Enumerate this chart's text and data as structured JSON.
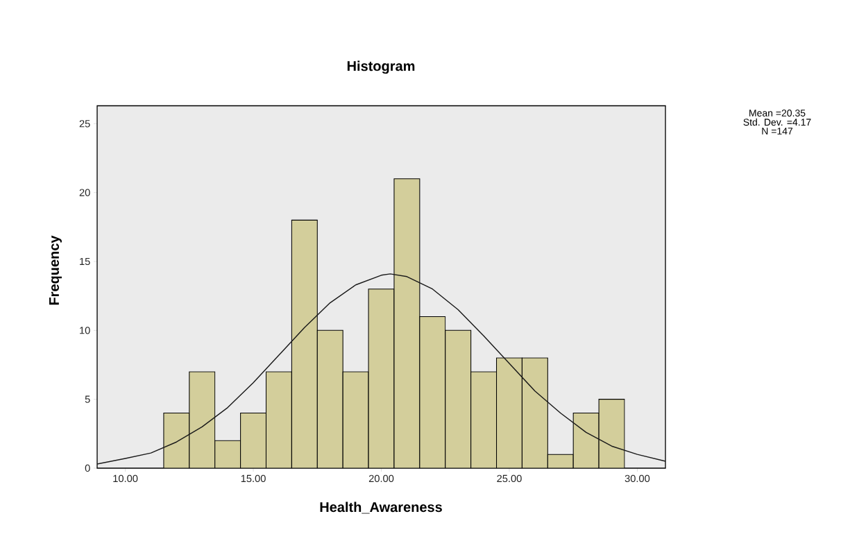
{
  "chart_data": {
    "type": "histogram",
    "title": "Histogram",
    "xlabel": "Health_Awareness",
    "ylabel": "Frequency",
    "bins": [
      11.5,
      12.5,
      13.5,
      14.5,
      15.5,
      16.5,
      17.5,
      18.5,
      19.5,
      20.5,
      21.5,
      22.5,
      23.5,
      24.5,
      25.5,
      26.5,
      27.5,
      28.5,
      29.5
    ],
    "values": [
      4,
      7,
      2,
      4,
      7,
      18,
      10,
      7,
      13,
      21,
      11,
      10,
      7,
      8,
      8,
      1,
      4,
      5
    ],
    "color": "#d3ce9b",
    "series": [
      {
        "type": "line",
        "color": "#1a1a1a",
        "x": [
          8.9,
          10,
          11,
          12,
          13,
          14,
          15,
          16,
          17,
          18,
          19,
          20,
          20.35,
          21,
          22,
          23,
          24,
          25,
          26,
          27,
          28,
          29,
          30,
          31.1
        ],
        "values": [
          0.3,
          0.7,
          1.1,
          1.9,
          3.0,
          4.4,
          6.2,
          8.2,
          10.2,
          12.0,
          13.3,
          14.0,
          14.1,
          13.9,
          13.0,
          11.5,
          9.6,
          7.6,
          5.6,
          4.0,
          2.6,
          1.6,
          1.0,
          0.5
        ]
      }
    ],
    "xlim": [
      8.9,
      31.1
    ],
    "ylim": [
      0,
      26.3
    ],
    "xticks": [
      {
        "value": 10,
        "label": "10.00"
      },
      {
        "value": 15,
        "label": "15.00"
      },
      {
        "value": 20,
        "label": "20.00"
      },
      {
        "value": 25,
        "label": "25.00"
      },
      {
        "value": 30,
        "label": "30.00"
      }
    ],
    "yticks": [
      0,
      5,
      10,
      15,
      20,
      25
    ],
    "annotations": [
      "Mean =20.35",
      "Std. Dev. =4.17",
      "N =147"
    ]
  }
}
